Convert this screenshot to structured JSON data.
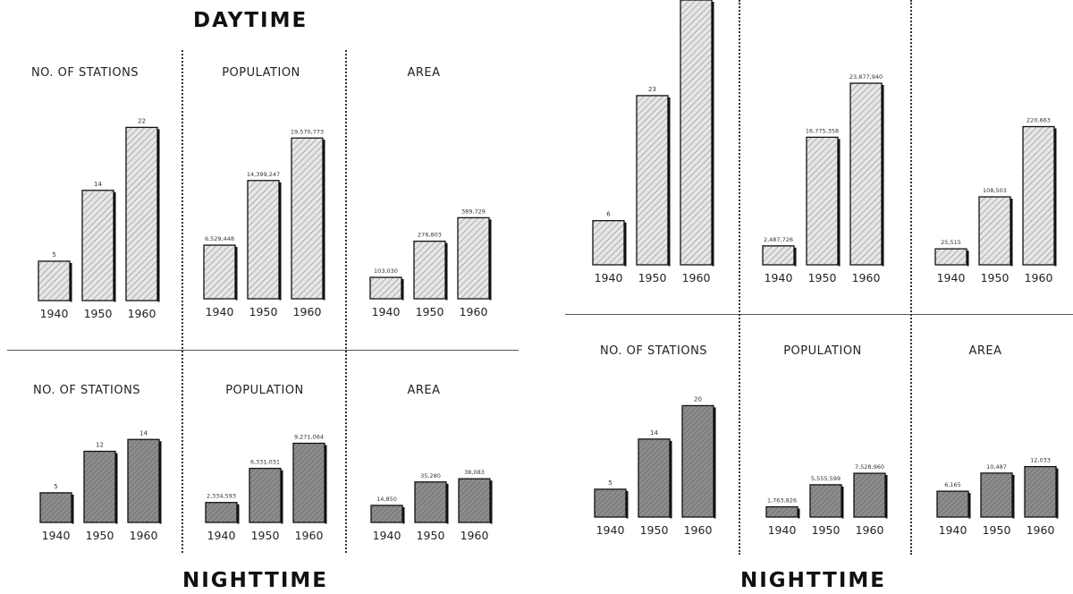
{
  "titles": {
    "left_top": "DAYTIME",
    "left_bottom": "NIGHTTIME",
    "right_bottom": "NIGHTTIME"
  },
  "colors": {
    "hatch_bar": "#e6e6e6",
    "hatch_line": "#8a8a8a",
    "solid_bar": "#8d8d8d",
    "solid_line": "#5a5a5a",
    "bar_border": "#111111"
  },
  "chart_data": [
    {
      "type": "bar",
      "title": "NO. OF STATIONS",
      "section": "DAYTIME",
      "style": "hatched",
      "categories": [
        "1940",
        "1950",
        "1960"
      ],
      "values": [
        5,
        14,
        22
      ],
      "value_labels": [
        "5",
        "14",
        "22"
      ],
      "ylim": [
        0,
        25
      ]
    },
    {
      "type": "bar",
      "title": "POPULATION",
      "section": "DAYTIME",
      "style": "hatched",
      "categories": [
        "1940",
        "1950",
        "1960"
      ],
      "values": [
        6529448,
        14399247,
        19570773
      ],
      "value_labels": [
        "6,529,448",
        "14,399,247",
        "19,570,773"
      ],
      "ylim": [
        0,
        22000000
      ]
    },
    {
      "type": "bar",
      "title": "AREA",
      "section": "DAYTIME",
      "style": "hatched",
      "categories": [
        "1940",
        "1950",
        "1960"
      ],
      "values": [
        103030,
        276803,
        389729
      ],
      "value_labels": [
        "103,030",
        "276,803",
        "389,729"
      ],
      "ylim": [
        0,
        800000
      ]
    },
    {
      "type": "bar",
      "title": "NO. OF STATIONS",
      "section": "NIGHTTIME",
      "style": "solid",
      "categories": [
        "1940",
        "1950",
        "1960"
      ],
      "values": [
        5,
        12,
        14
      ],
      "value_labels": [
        "5",
        "12",
        "14"
      ],
      "ylim": [
        0,
        16
      ]
    },
    {
      "type": "bar",
      "title": "POPULATION",
      "section": "NIGHTTIME",
      "style": "solid",
      "categories": [
        "1940",
        "1950",
        "1960"
      ],
      "values": [
        2334593,
        6331031,
        9271064
      ],
      "value_labels": [
        "2,334,593",
        "6,331,031",
        "9,271,064"
      ],
      "ylim": [
        0,
        11000000
      ]
    },
    {
      "type": "bar",
      "title": "AREA",
      "section": "NIGHTTIME",
      "style": "solid",
      "categories": [
        "1940",
        "1950",
        "1960"
      ],
      "values": [
        14850,
        35280,
        38083
      ],
      "value_labels": [
        "14,850",
        "35,280",
        "38,083"
      ],
      "ylim": [
        0,
        110000
      ]
    },
    {
      "type": "bar",
      "title": "",
      "section": "",
      "style": "hatched",
      "categories": [
        "1940",
        "1950",
        "1960"
      ],
      "values": [
        6,
        23,
        36
      ],
      "value_labels": [
        "6",
        "23",
        ""
      ],
      "ylim": [
        0,
        36
      ]
    },
    {
      "type": "bar",
      "title": "",
      "section": "",
      "style": "hatched",
      "categories": [
        "1940",
        "1950",
        "1960"
      ],
      "values": [
        2487726,
        16775358,
        23877940
      ],
      "value_labels": [
        "2,487,726",
        "16,775,358",
        "23,877,940"
      ],
      "ylim": [
        0,
        28000000
      ]
    },
    {
      "type": "bar",
      "title": "",
      "section": "",
      "style": "hatched",
      "categories": [
        "1940",
        "1950",
        "1960"
      ],
      "values": [
        25515,
        108503,
        220663
      ],
      "value_labels": [
        "25,515",
        "108,503",
        "220,663"
      ],
      "ylim": [
        0,
        280000
      ]
    },
    {
      "type": "bar",
      "title": "NO. OF STATIONS",
      "section": "NIGHTTIME",
      "style": "solid",
      "categories": [
        "1940",
        "1950",
        "1960"
      ],
      "values": [
        5,
        14,
        20
      ],
      "value_labels": [
        "5",
        "14",
        "20"
      ],
      "ylim": [
        0,
        22
      ]
    },
    {
      "type": "bar",
      "title": "POPULATION",
      "section": "NIGHTTIME",
      "style": "solid",
      "categories": [
        "1940",
        "1950",
        "1960"
      ],
      "values": [
        1763826,
        5555599,
        7528960
      ],
      "value_labels": [
        "1,763,826",
        "5,555,599",
        "7,528,960"
      ],
      "ylim": [
        0,
        20000000
      ]
    },
    {
      "type": "bar",
      "title": "AREA",
      "section": "NIGHTTIME",
      "style": "solid",
      "categories": [
        "1940",
        "1950",
        "1960"
      ],
      "values": [
        6165,
        10487,
        12033
      ],
      "value_labels": [
        "6,165",
        "10,487",
        "12,033"
      ],
      "ylim": [
        0,
        32000
      ]
    }
  ]
}
